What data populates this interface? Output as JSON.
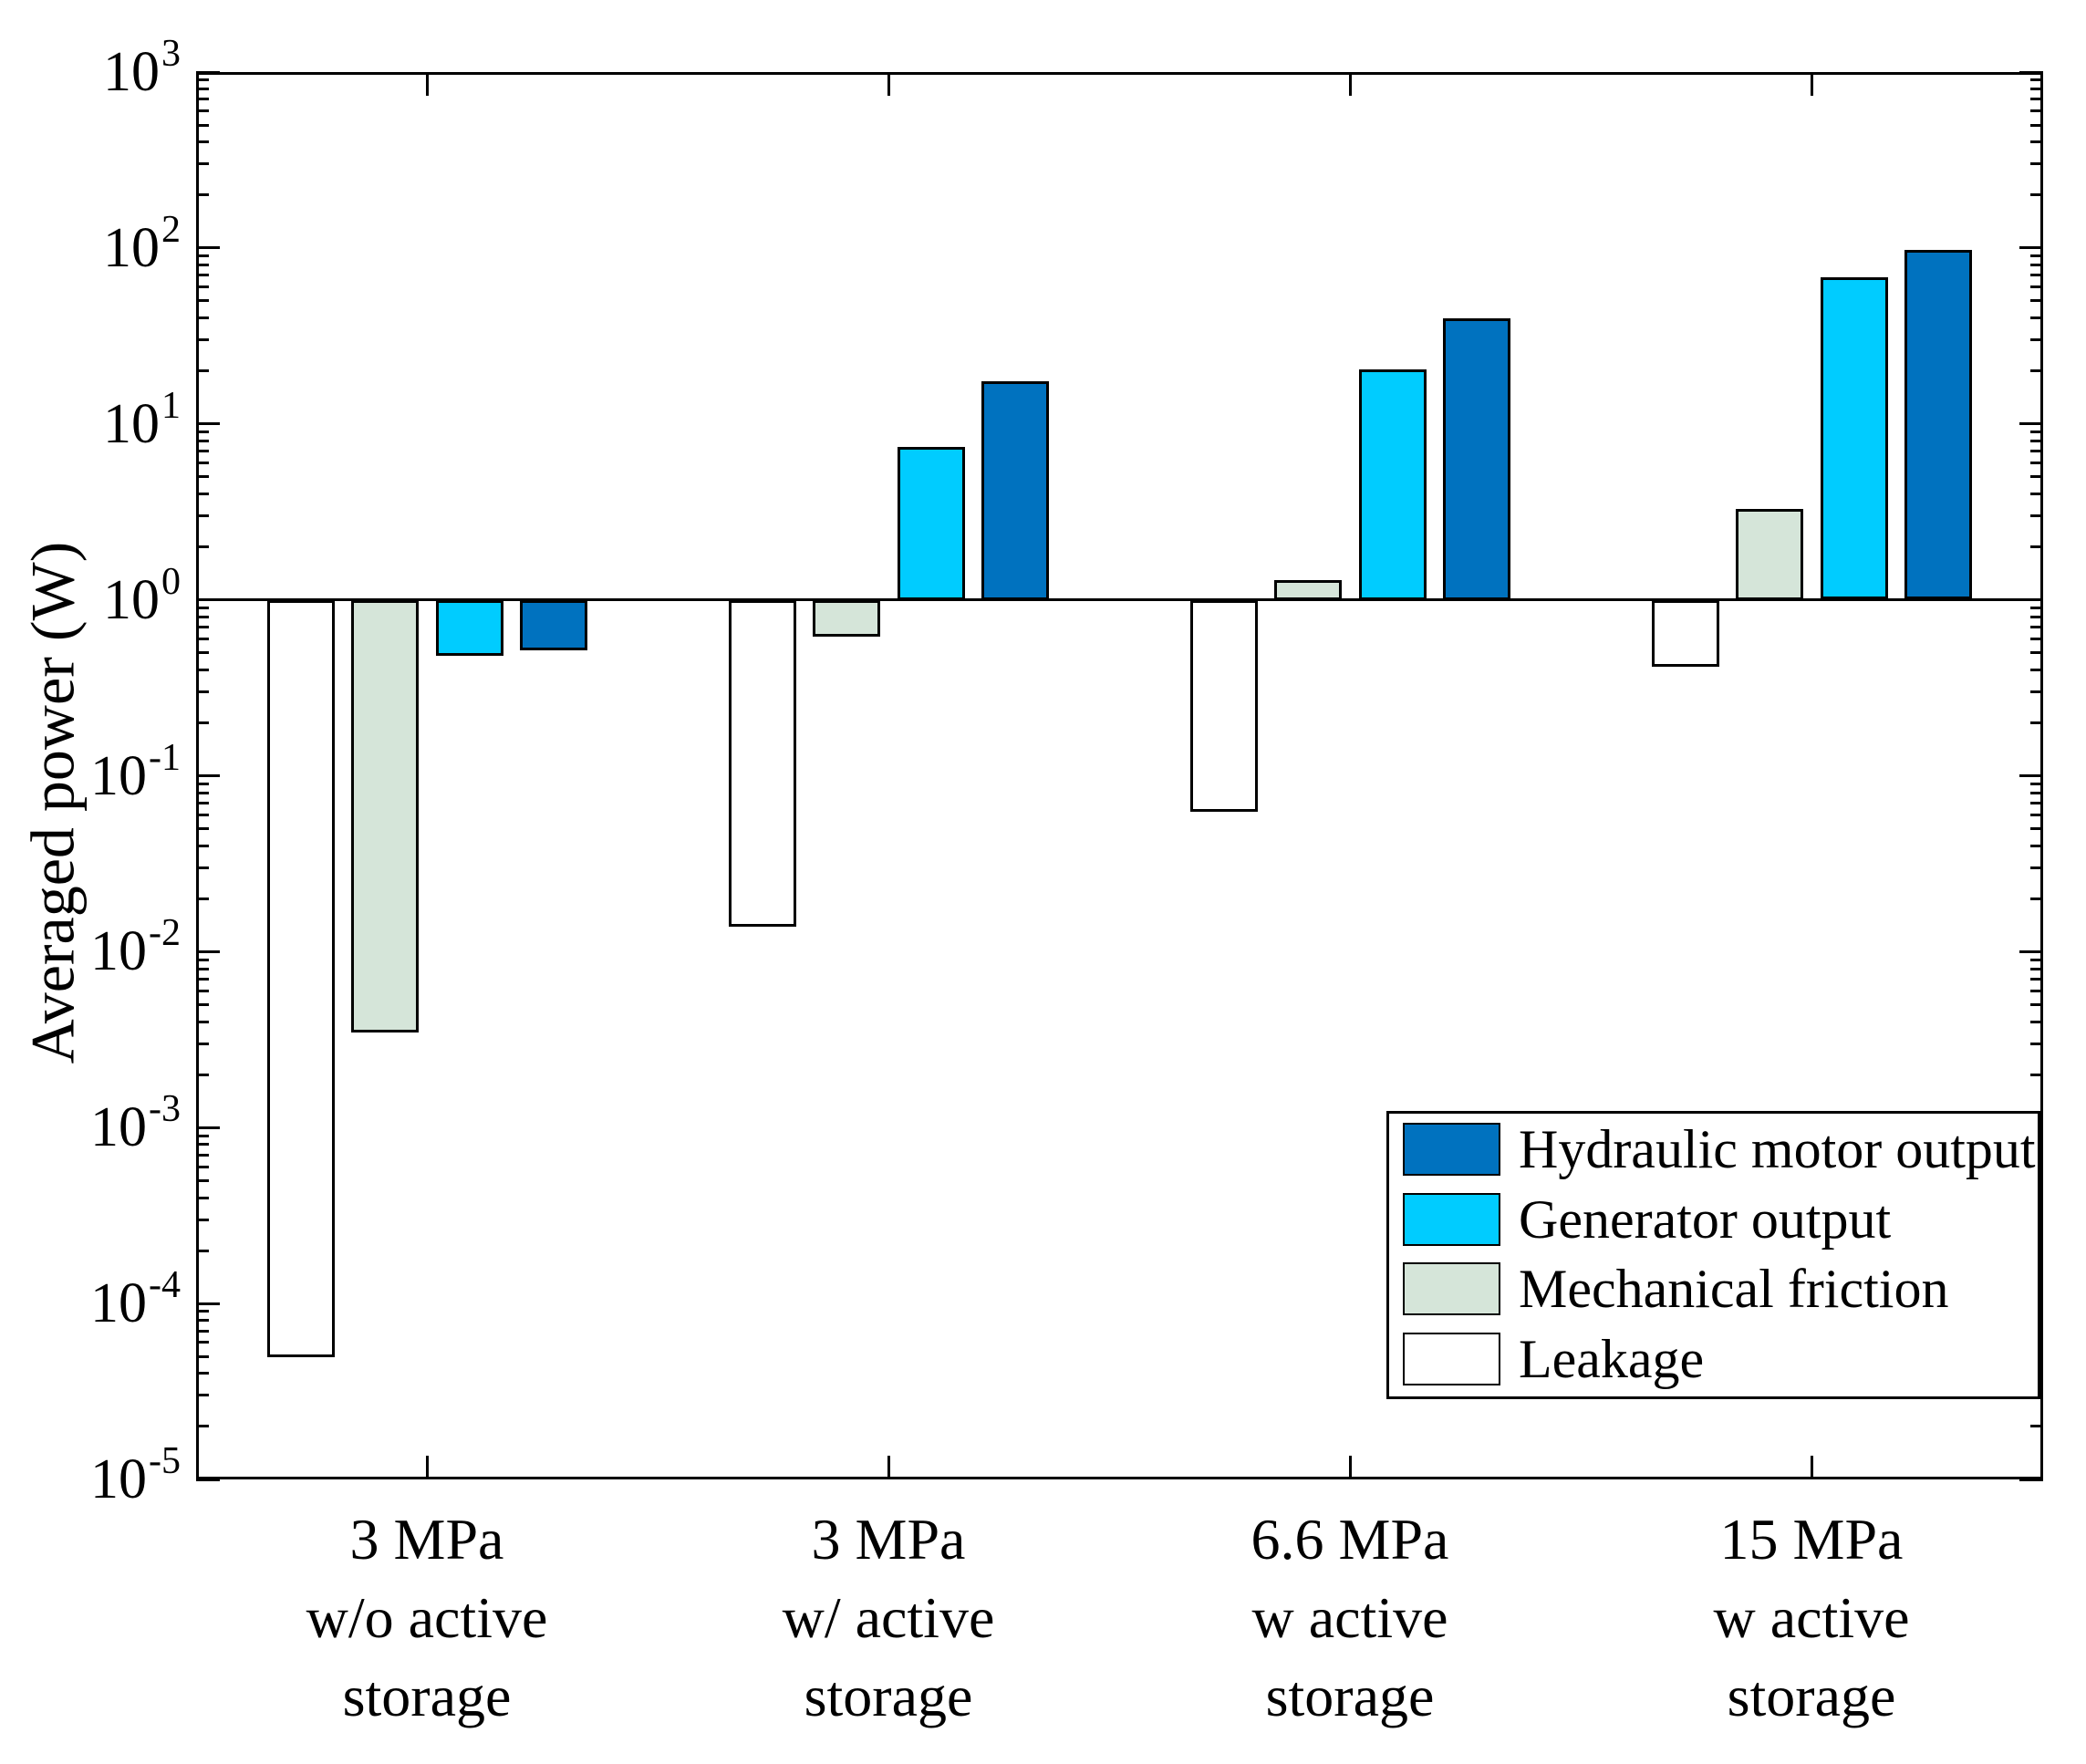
{
  "chart_data": {
    "type": "bar",
    "yscale": "log",
    "title": "",
    "xlabel": "",
    "ylabel": "Averaged power (W)",
    "ylim": [
      1e-05,
      1000
    ],
    "baseline": 1,
    "grid": false,
    "legend_position": "lower right",
    "categories": [
      [
        "3 MPa",
        "w/o active",
        "storage"
      ],
      [
        "3 MPa",
        "w/ active",
        "storage"
      ],
      [
        "6.6 MPa",
        "w active",
        "storage"
      ],
      [
        "15 MPa",
        "w active",
        "storage"
      ]
    ],
    "series": [
      {
        "name": "Leakage",
        "color": "#FFFFFF",
        "values": [
          5e-05,
          0.014,
          0.063,
          0.42
        ]
      },
      {
        "name": "Mechanical friction",
        "color": "#D5E5D9",
        "values": [
          0.0035,
          0.62,
          1.3,
          3.3
        ]
      },
      {
        "name": "Generator output",
        "color": "#00CCFF",
        "values": [
          0.48,
          7.4,
          20.5,
          68
        ]
      },
      {
        "name": "Hydraulic motor output",
        "color": "#0072BF",
        "values": [
          0.52,
          17.5,
          40,
          97
        ]
      }
    ],
    "legend_order": [
      "Hydraulic motor output",
      "Generator output",
      "Mechanical friction",
      "Leakage"
    ],
    "ytick_exponents": [
      3,
      2,
      1,
      0,
      -1,
      -2,
      -3,
      -4,
      -5
    ],
    "axis_color": "#000000"
  }
}
